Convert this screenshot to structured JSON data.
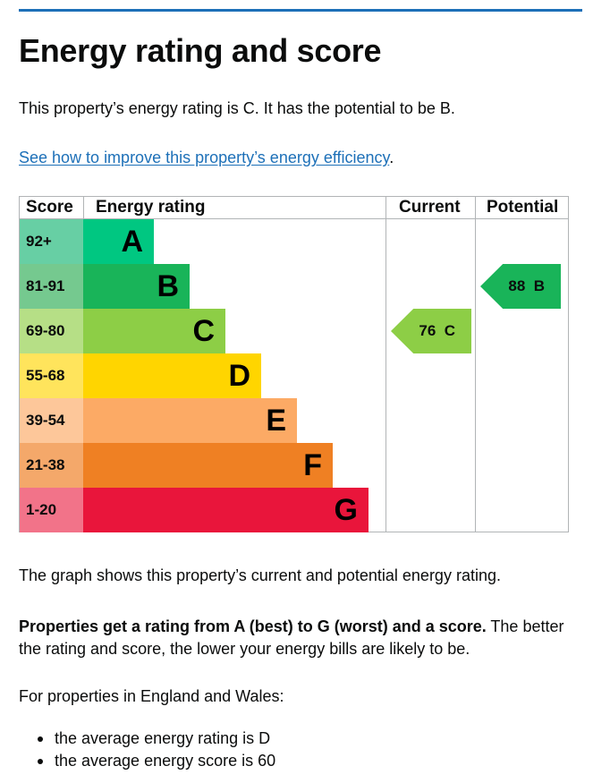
{
  "page": {
    "title": "Energy rating and score",
    "intro": "This property’s energy rating is C. It has the potential to be B.",
    "link_text": "See how to improve this property’s energy efficiency",
    "link_suffix": "."
  },
  "chart": {
    "headers": {
      "score": "Score",
      "rating": "Energy rating",
      "current": "Current",
      "potential": "Potential"
    },
    "bands": [
      {
        "score": "92+",
        "letter": "A",
        "color": "#00c781",
        "score_bg": "#67cfa4"
      },
      {
        "score": "81-91",
        "letter": "B",
        "color": "#19b459",
        "score_bg": "#75c98f"
      },
      {
        "score": "69-80",
        "letter": "C",
        "color": "#8dce46",
        "score_bg": "#b6df86"
      },
      {
        "score": "55-68",
        "letter": "D",
        "color": "#ffd500",
        "score_bg": "#ffe45c"
      },
      {
        "score": "39-54",
        "letter": "E",
        "color": "#fcaa65",
        "score_bg": "#fdc79a"
      },
      {
        "score": "21-38",
        "letter": "F",
        "color": "#ef8023",
        "score_bg": "#f4a86a"
      },
      {
        "score": "1-20",
        "letter": "G",
        "color": "#e9153b",
        "score_bg": "#f27389"
      }
    ],
    "current": {
      "label": "76  C",
      "score": 76,
      "letter": "C",
      "color": "#8dce46"
    },
    "potential": {
      "label": "88  B",
      "score": 88,
      "letter": "B",
      "color": "#19b459"
    }
  },
  "text": {
    "graph_note": "The graph shows this property’s current and potential energy rating.",
    "props_bold": "Properties get a rating from A (best) to G (worst) and a score.",
    "props_rest": " The better the rating and score, the lower your energy bills are likely to be.",
    "england_wales": "For properties in England and Wales:",
    "bullets": [
      "the average energy rating is D",
      "the average energy score is 60"
    ]
  }
}
